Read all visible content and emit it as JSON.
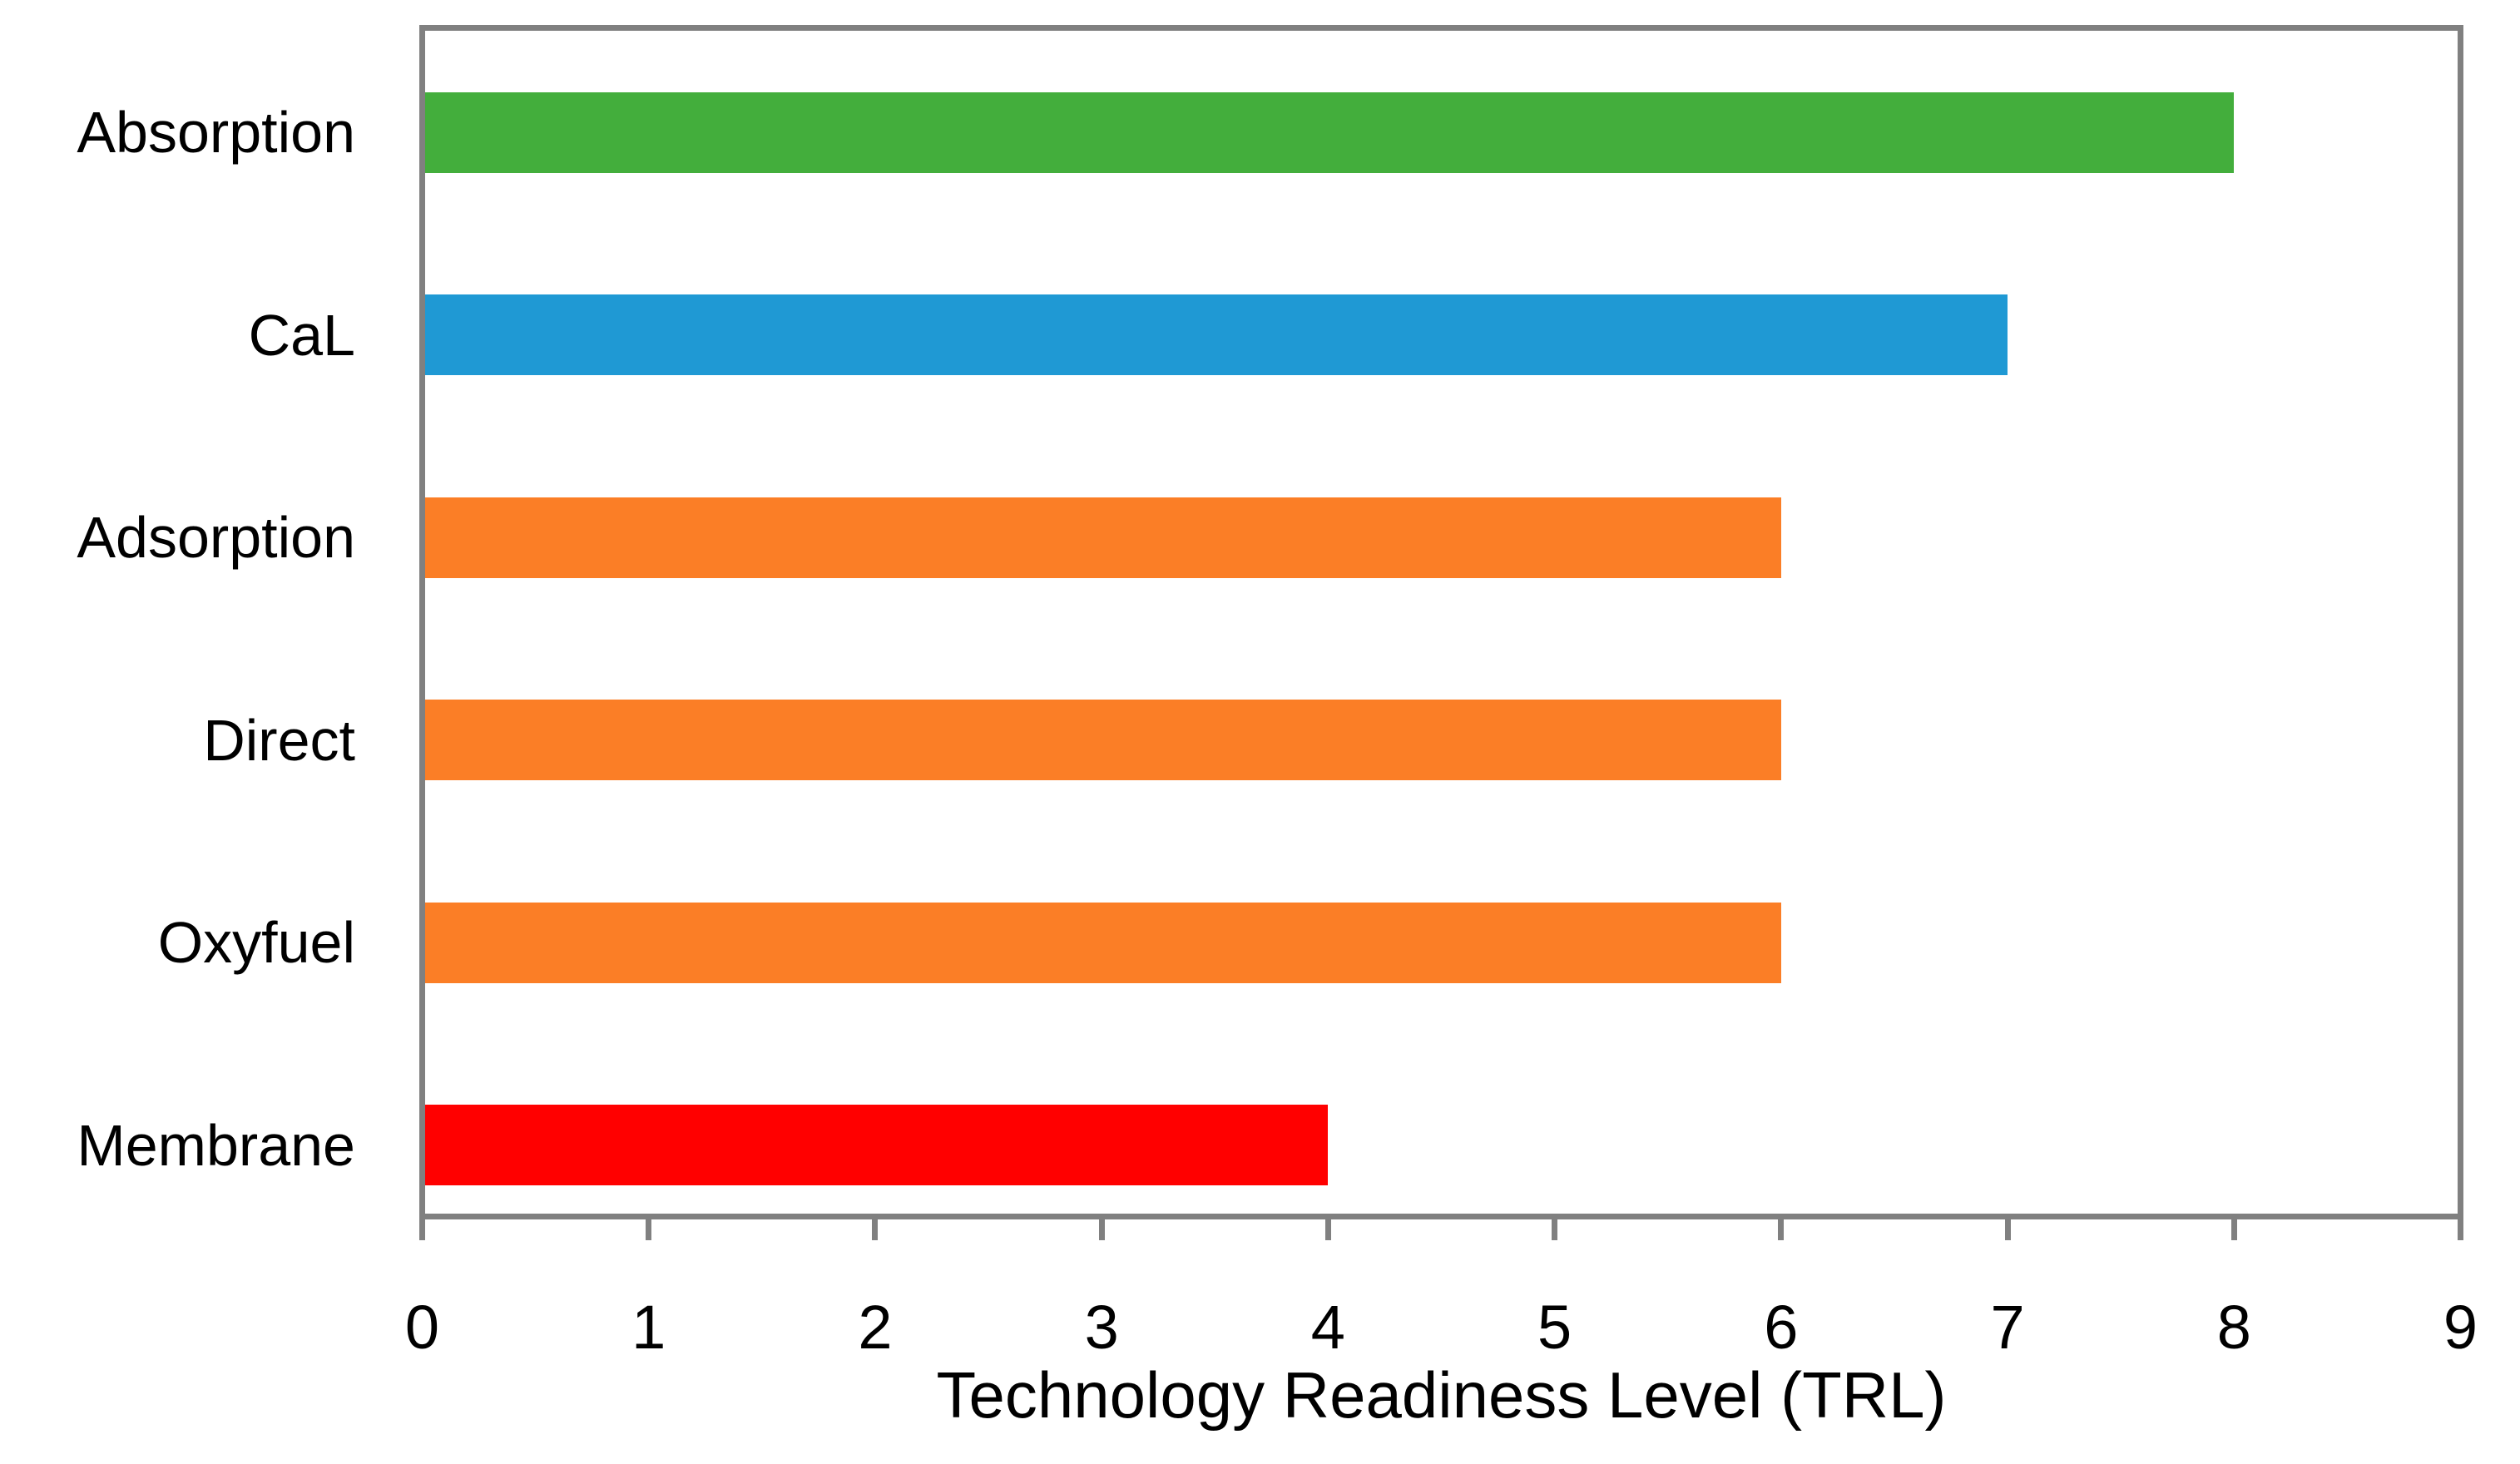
{
  "chart_data": {
    "type": "bar",
    "orientation": "horizontal",
    "title": "",
    "xlabel": "Technology Readiness Level (TRL)",
    "ylabel": "",
    "categories": [
      "Absorption",
      "CaL",
      "Adsorption",
      "Direct",
      "Oxyfuel",
      "Membrane"
    ],
    "values": [
      8,
      7,
      6,
      6,
      6,
      4
    ],
    "bar_colors": [
      "#43AE3C",
      "#1F99D4",
      "#FB7E26",
      "#FB7E26",
      "#FB7E26",
      "#FF0000"
    ],
    "xlim": [
      0,
      9
    ],
    "xticks": [
      "0",
      "1",
      "2",
      "3",
      "4",
      "5",
      "6",
      "7",
      "8",
      "9"
    ],
    "grid": "off",
    "legend": "none",
    "axis_color": "#808080",
    "plot_background": "#ffffff"
  }
}
